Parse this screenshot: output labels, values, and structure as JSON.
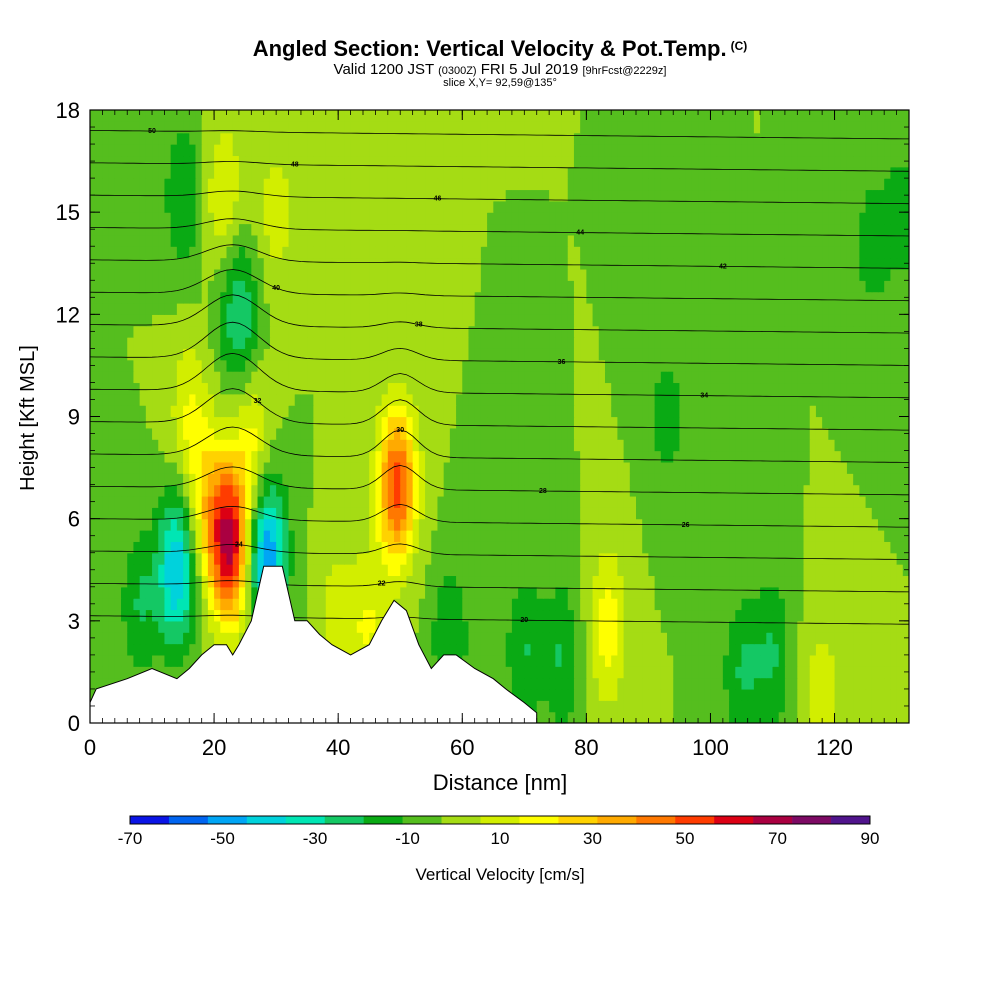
{
  "header": {
    "title": "Angled Section: Vertical Velocity & Pot.Temp.",
    "title_suffix": "(C)",
    "valid_prefix": "Valid 1200 JST",
    "valid_utc": "(0300Z)",
    "valid_date": "FRI 5 Jul 2019",
    "forecast": "[9hrFcst@2229z]",
    "slice": "slice X,Y= 92,59@135°"
  },
  "chart_data": {
    "type": "heatmap",
    "xlabel": "Distance [nm]",
    "ylabel": "Height [Kft MSL]",
    "xlim": [
      0,
      132
    ],
    "ylim": [
      0,
      18
    ],
    "xticks": [
      "0",
      "20",
      "40",
      "60",
      "80",
      "100",
      "120"
    ],
    "yticks": [
      "0",
      "3",
      "6",
      "9",
      "12",
      "15",
      "18"
    ],
    "colorbar": {
      "label": "Vertical Velocity [cm/s]",
      "min": -70,
      "max": 90,
      "step": 10,
      "tick_labels": [
        "-70",
        "-50",
        "-30",
        "-10",
        "10",
        "30",
        "50",
        "70",
        "90"
      ],
      "colors": [
        "#0a14e6",
        "#0064f0",
        "#00a5f5",
        "#00d2dc",
        "#00e6b4",
        "#14c864",
        "#0aaa14",
        "#55be1e",
        "#a5dc14",
        "#d2ee00",
        "#ffff00",
        "#ffd200",
        "#ffaa00",
        "#ff7800",
        "#ff3c00",
        "#dc0014",
        "#aa0041",
        "#7d0a64",
        "#50148c"
      ]
    },
    "background_velocity_cm_s": 10,
    "velocity_features": [
      {
        "x": 22.5,
        "y": 5.2,
        "value": 90
      },
      {
        "x": 49.5,
        "y": 7.0,
        "value": 75
      },
      {
        "x": 19,
        "y": 6.5,
        "value": 40
      },
      {
        "x": 26,
        "y": 8.0,
        "value": 35
      },
      {
        "x": 21.5,
        "y": 15.5,
        "value": 30
      },
      {
        "x": 30,
        "y": 15.0,
        "value": 25
      },
      {
        "x": 16,
        "y": 9.0,
        "value": 30
      },
      {
        "x": 45,
        "y": 2.8,
        "value": 30
      },
      {
        "x": 40,
        "y": 3.2,
        "value": 25
      },
      {
        "x": 83.5,
        "y": 2.8,
        "value": 35
      },
      {
        "x": 118,
        "y": 1.0,
        "value": 25
      },
      {
        "x": 14,
        "y": 4.5,
        "value": -40
      },
      {
        "x": 28.5,
        "y": 5.0,
        "value": -50
      },
      {
        "x": 24,
        "y": 12.0,
        "value": -20
      },
      {
        "x": 15,
        "y": 15.5,
        "value": -10
      },
      {
        "x": 8,
        "y": 3.5,
        "value": -10
      },
      {
        "x": 58,
        "y": 2.5,
        "value": -10
      },
      {
        "x": 70,
        "y": 2.2,
        "value": -10
      },
      {
        "x": 76,
        "y": 2.0,
        "value": -10
      },
      {
        "x": 93,
        "y": 9.0,
        "value": -5
      },
      {
        "x": 105,
        "y": 1.5,
        "value": -10
      },
      {
        "x": 110,
        "y": 2.0,
        "value": -10
      },
      {
        "x": 126,
        "y": 14.0,
        "value": -5
      },
      {
        "x": 131,
        "y": 15.0,
        "value": -5
      }
    ],
    "terrain": [
      {
        "x": 0,
        "y": 0.6
      },
      {
        "x": 1,
        "y": 1.0
      },
      {
        "x": 6,
        "y": 1.3
      },
      {
        "x": 10,
        "y": 1.6
      },
      {
        "x": 14,
        "y": 1.3
      },
      {
        "x": 16,
        "y": 1.6
      },
      {
        "x": 18,
        "y": 2.0
      },
      {
        "x": 20,
        "y": 2.3
      },
      {
        "x": 22,
        "y": 2.3
      },
      {
        "x": 23,
        "y": 2.0
      },
      {
        "x": 24,
        "y": 2.3
      },
      {
        "x": 26,
        "y": 3.0
      },
      {
        "x": 28,
        "y": 4.6
      },
      {
        "x": 31,
        "y": 4.6
      },
      {
        "x": 33,
        "y": 3.0
      },
      {
        "x": 35,
        "y": 3.0
      },
      {
        "x": 37,
        "y": 2.6
      },
      {
        "x": 39,
        "y": 2.3
      },
      {
        "x": 42,
        "y": 2.0
      },
      {
        "x": 45,
        "y": 2.3
      },
      {
        "x": 47,
        "y": 3.0
      },
      {
        "x": 49,
        "y": 3.6
      },
      {
        "x": 51,
        "y": 3.3
      },
      {
        "x": 53,
        "y": 2.3
      },
      {
        "x": 55,
        "y": 1.6
      },
      {
        "x": 57,
        "y": 2.0
      },
      {
        "x": 59,
        "y": 2.0
      },
      {
        "x": 62,
        "y": 1.6
      },
      {
        "x": 65,
        "y": 1.3
      },
      {
        "x": 67,
        "y": 1.0
      },
      {
        "x": 70,
        "y": 0.6
      },
      {
        "x": 72,
        "y": 0.3
      }
    ],
    "isentrope_labels": [
      "50",
      "48",
      "46",
      "44",
      "42",
      "40",
      "38",
      "36",
      "34",
      "32",
      "30",
      "28",
      "26",
      "24",
      "22",
      "20"
    ]
  }
}
